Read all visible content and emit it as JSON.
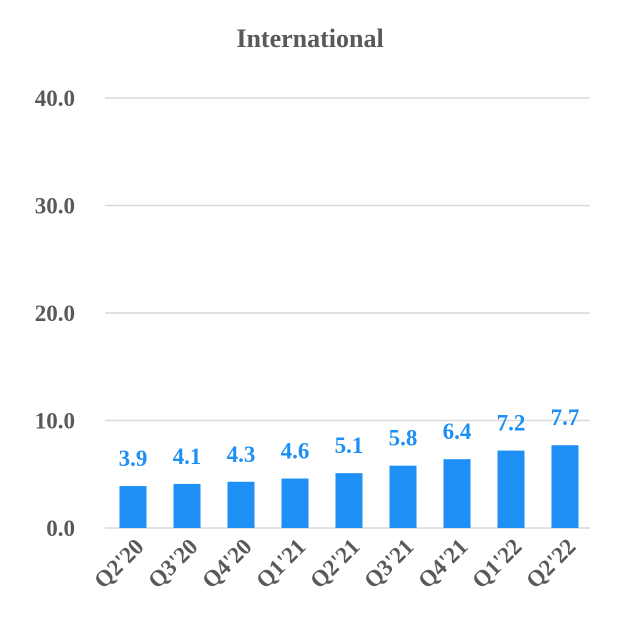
{
  "chart_data": {
    "type": "bar",
    "title": "International",
    "categories": [
      "Q2'20",
      "Q3'20",
      "Q4'20",
      "Q1'21",
      "Q2'21",
      "Q3'21",
      "Q4'21",
      "Q1'22",
      "Q2'22"
    ],
    "values": [
      3.9,
      4.1,
      4.3,
      4.6,
      5.1,
      5.8,
      6.4,
      7.2,
      7.7
    ],
    "data_labels": [
      "3.9",
      "4.1",
      "4.3",
      "4.6",
      "5.1",
      "5.8",
      "6.4",
      "7.2",
      "7.7"
    ],
    "ylim": [
      0,
      40
    ],
    "y_ticks": [
      0,
      10,
      20,
      30,
      40
    ],
    "y_tick_labels": [
      "0.0",
      "10.0",
      "20.0",
      "30.0",
      "40.0"
    ],
    "grid": true,
    "legend": "none",
    "colors": {
      "bar": "#1E90F5",
      "data_label": "#1E90F5",
      "gridline": "#D9D9D9",
      "text": "#595959"
    }
  }
}
